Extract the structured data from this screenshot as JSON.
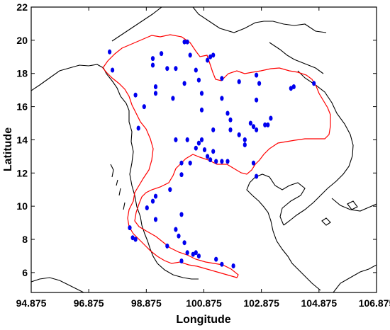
{
  "chart_data": {
    "type": "scatter",
    "title": "",
    "xlabel": "Longitude",
    "ylabel": "Latitude",
    "xlim": [
      94.875,
      106.875
    ],
    "ylim": [
      4.8,
      22.0
    ],
    "x_ticks": [
      "94.875",
      "96.875",
      "98.875",
      "100.875",
      "102.875",
      "104.875",
      "106.875"
    ],
    "y_ticks": [
      "6",
      "8",
      "10",
      "12",
      "14",
      "16",
      "18",
      "20",
      "22"
    ],
    "grid": false,
    "colors": {
      "stations": "#0000ee",
      "boundary": "#ff0000",
      "coastline": "#000000"
    },
    "series": [
      {
        "points": [
          [
            97.6,
            19.3
          ],
          [
            97.7,
            18.2
          ],
          [
            98.5,
            16.7
          ],
          [
            98.6,
            14.7
          ],
          [
            98.8,
            16.0
          ],
          [
            99.1,
            18.9
          ],
          [
            99.1,
            18.5
          ],
          [
            99.2,
            17.2
          ],
          [
            99.2,
            16.8
          ],
          [
            99.4,
            19.2
          ],
          [
            99.6,
            18.3
          ],
          [
            99.8,
            16.5
          ],
          [
            99.9,
            18.3
          ],
          [
            99.9,
            14.0
          ],
          [
            100.2,
            19.9
          ],
          [
            100.2,
            17.4
          ],
          [
            100.3,
            19.9
          ],
          [
            100.4,
            19.1
          ],
          [
            100.3,
            14.0
          ],
          [
            100.6,
            18.2
          ],
          [
            100.7,
            17.6
          ],
          [
            100.8,
            16.8
          ],
          [
            100.8,
            15.8
          ],
          [
            101.1,
            19.0
          ],
          [
            101.2,
            19.1
          ],
          [
            101.0,
            18.8
          ],
          [
            101.5,
            17.7
          ],
          [
            101.5,
            16.5
          ],
          [
            101.7,
            15.6
          ],
          [
            101.8,
            15.2
          ],
          [
            101.8,
            14.6
          ],
          [
            102.1,
            14.3
          ],
          [
            102.3,
            14.0
          ],
          [
            101.2,
            14.6
          ],
          [
            100.8,
            14.0
          ],
          [
            100.7,
            13.8
          ],
          [
            100.6,
            13.5
          ],
          [
            100.9,
            13.4
          ],
          [
            101.2,
            13.3
          ],
          [
            101.0,
            13.0
          ],
          [
            101.1,
            12.8
          ],
          [
            101.3,
            12.7
          ],
          [
            101.5,
            12.7
          ],
          [
            101.7,
            12.7
          ],
          [
            100.1,
            12.6
          ],
          [
            100.4,
            12.6
          ],
          [
            100.1,
            11.9
          ],
          [
            102.1,
            17.5
          ],
          [
            102.7,
            17.9
          ],
          [
            102.8,
            17.4
          ],
          [
            102.7,
            16.4
          ],
          [
            102.5,
            15.0
          ],
          [
            102.6,
            14.8
          ],
          [
            102.7,
            14.6
          ],
          [
            102.3,
            13.7
          ],
          [
            102.6,
            12.6
          ],
          [
            103.2,
            15.3
          ],
          [
            103.0,
            14.9
          ],
          [
            103.1,
            14.9
          ],
          [
            103.9,
            17.1
          ],
          [
            104.0,
            17.2
          ],
          [
            104.7,
            17.4
          ],
          [
            102.7,
            11.8
          ],
          [
            99.2,
            10.6
          ],
          [
            99.1,
            10.3
          ],
          [
            99.2,
            9.2
          ],
          [
            98.3,
            8.7
          ],
          [
            98.4,
            8.1
          ],
          [
            98.5,
            8.0
          ],
          [
            99.6,
            7.6
          ],
          [
            100.1,
            9.5
          ],
          [
            99.9,
            8.6
          ],
          [
            100.0,
            8.2
          ],
          [
            100.2,
            7.8
          ],
          [
            100.3,
            7.2
          ],
          [
            100.5,
            7.1
          ],
          [
            100.6,
            7.2
          ],
          [
            100.7,
            7.0
          ],
          [
            101.3,
            6.8
          ],
          [
            101.5,
            6.5
          ],
          [
            101.9,
            6.4
          ],
          [
            100.1,
            6.7
          ],
          [
            99.7,
            11.0
          ],
          [
            98.9,
            9.9
          ]
        ]
      }
    ]
  }
}
